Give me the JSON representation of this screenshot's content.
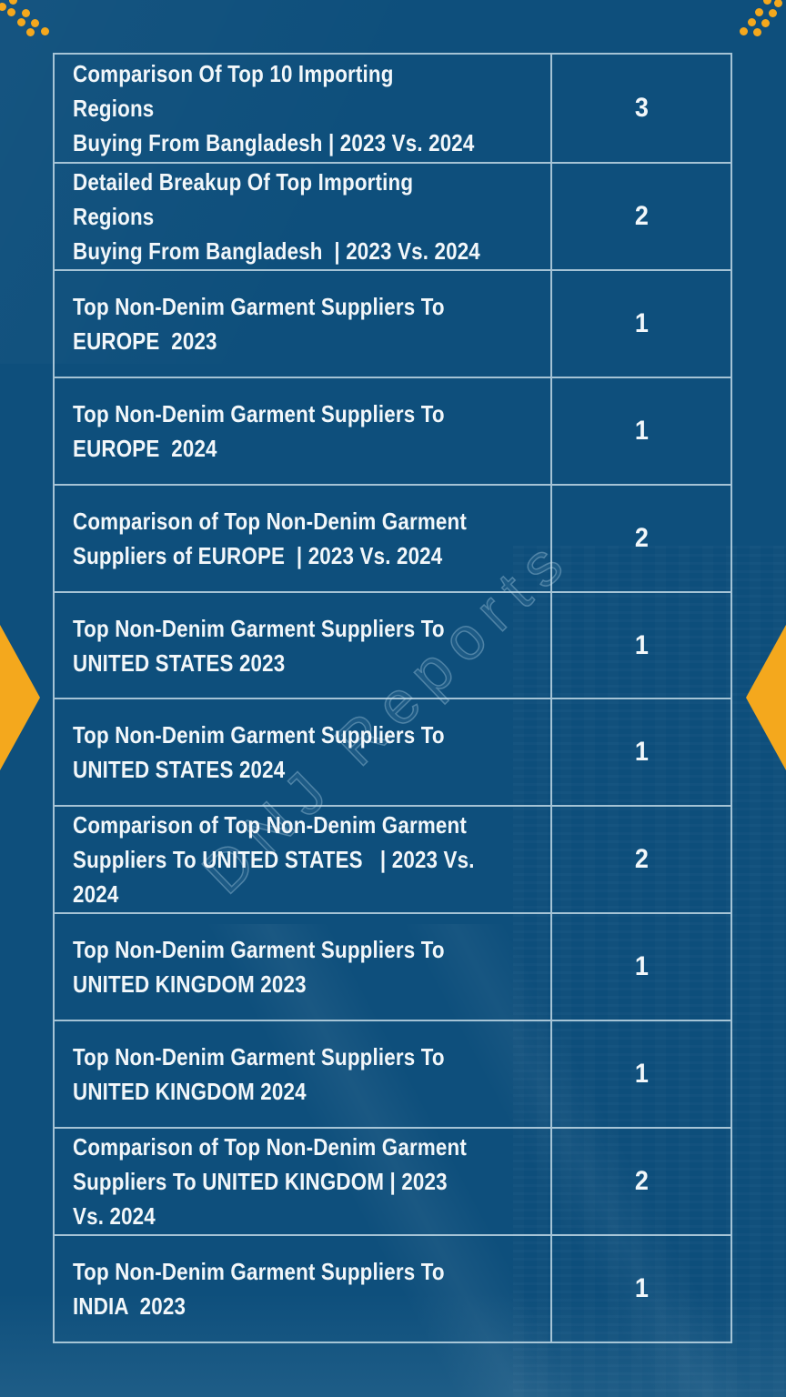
{
  "watermark": "DNJ Reports",
  "colors": {
    "background": "#0E4F7C",
    "accent_yellow": "#F4A81D",
    "table_border": "#D0E4EE",
    "text": "#F2F7FA"
  },
  "table": {
    "rows": [
      {
        "title": "Comparison Of Top 10 Importing Regions\nBuying From Bangladesh | 2023 Vs. 2024",
        "page": "3"
      },
      {
        "title": "Detailed Breakup Of Top Importing Regions\nBuying From Bangladesh  | 2023 Vs. 2024",
        "page": "2"
      },
      {
        "title": "Top Non-Denim Garment Suppliers To\nEUROPE  2023",
        "page": "1"
      },
      {
        "title": "Top Non-Denim Garment Suppliers To\nEUROPE  2024",
        "page": "1"
      },
      {
        "title": "Comparison of Top Non-Denim Garment\nSuppliers of EUROPE  | 2023 Vs. 2024",
        "page": "2"
      },
      {
        "title": "Top Non-Denim Garment Suppliers To\nUNITED STATES 2023",
        "page": "1"
      },
      {
        "title": "Top Non-Denim Garment Suppliers To\nUNITED STATES 2024",
        "page": "1"
      },
      {
        "title": "Comparison of Top Non-Denim Garment\nSuppliers To UNITED STATES   | 2023 Vs. 2024",
        "page": "2"
      },
      {
        "title": "Top Non-Denim Garment Suppliers To\nUNITED KINGDOM 2023",
        "page": "1"
      },
      {
        "title": "Top Non-Denim Garment Suppliers To\nUNITED KINGDOM 2024",
        "page": "1"
      },
      {
        "title": "Comparison of Top Non-Denim Garment\nSuppliers To UNITED KINGDOM | 2023 Vs. 2024",
        "page": "2"
      },
      {
        "title": "Top Non-Denim Garment Suppliers To\nINDIA  2023",
        "page": "1"
      }
    ]
  }
}
